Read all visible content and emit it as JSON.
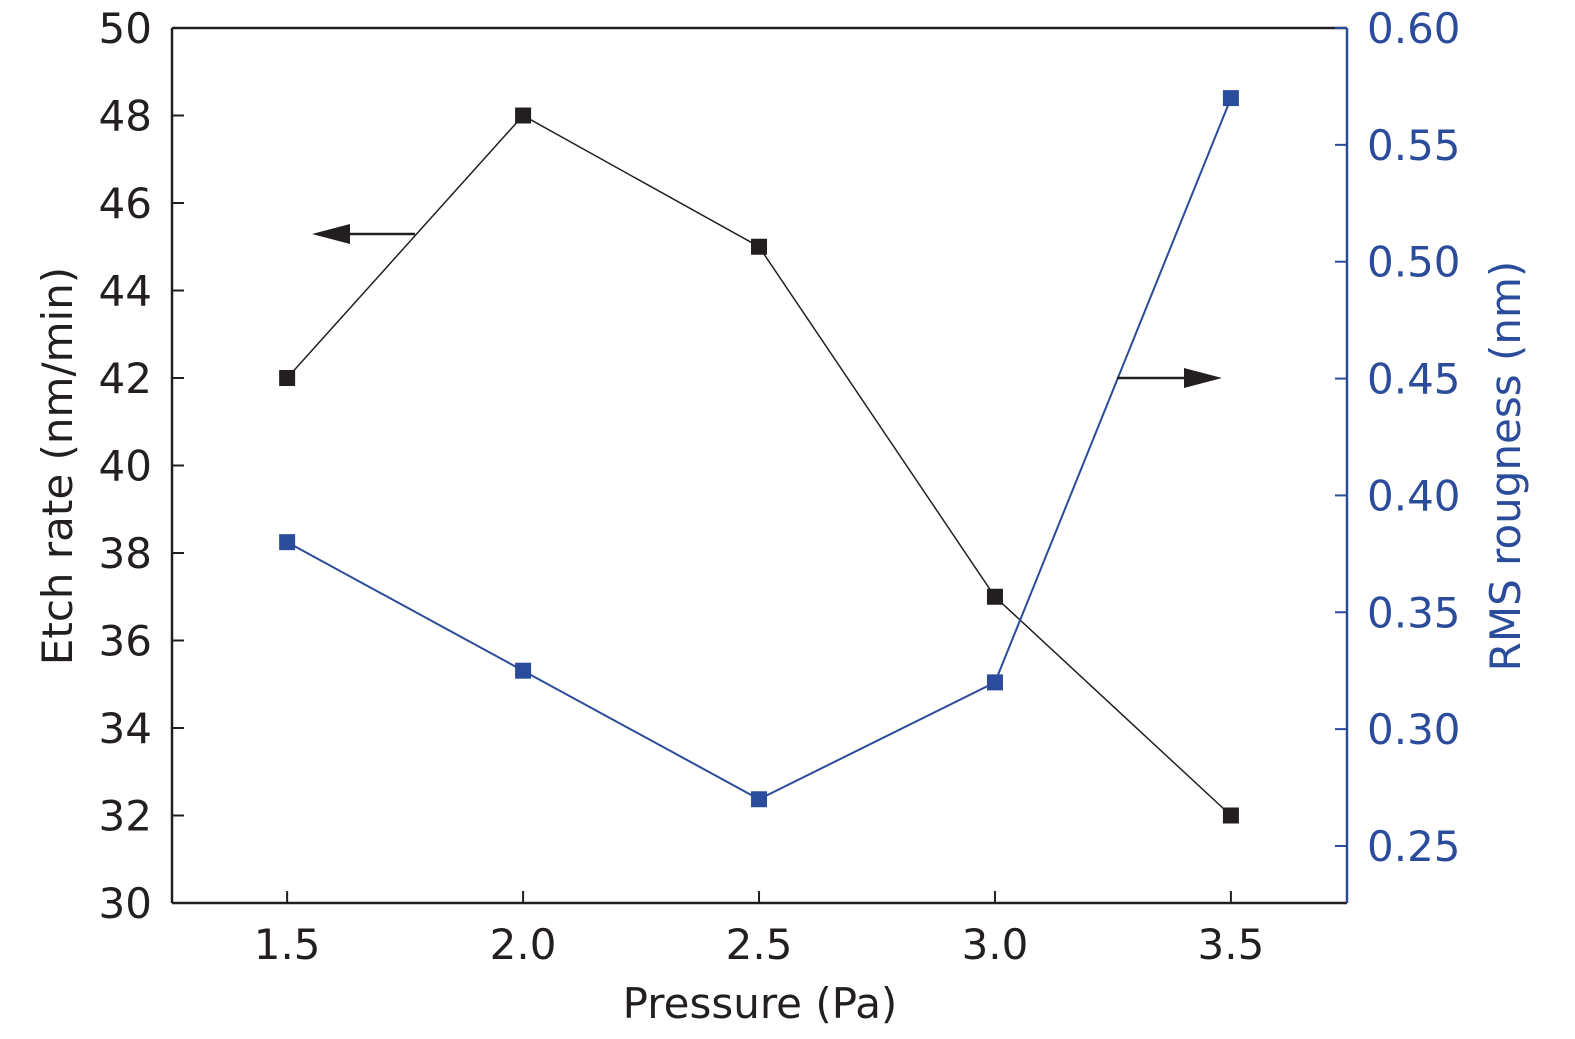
{
  "chart_data": {
    "type": "line",
    "title": "",
    "xlabel": "Pressure (Pa)",
    "ylabel": "Etch rate (nm/min)",
    "y2label": "RMS rougness (nm)",
    "x": [
      1.5,
      2.0,
      2.5,
      3.0,
      3.5
    ],
    "xlim": [
      1.256,
      3.746
    ],
    "ylim": [
      30,
      50
    ],
    "y2lim": [
      0.2256,
      0.6
    ],
    "xticks": [
      "1.5",
      "2.0",
      "2.5",
      "3.0",
      "3.5"
    ],
    "yticks": [
      "30",
      "32",
      "34",
      "36",
      "38",
      "40",
      "42",
      "44",
      "46",
      "48",
      "50"
    ],
    "y2ticks": [
      "0.25",
      "0.30",
      "0.35",
      "0.40",
      "0.45",
      "0.50",
      "0.55",
      "0.60"
    ],
    "grid": false,
    "series": [
      {
        "name": "Etch rate",
        "axis": "left",
        "color": "#231f20",
        "values": [
          42,
          48,
          45,
          37,
          32
        ]
      },
      {
        "name": "RMS roughness",
        "axis": "right",
        "color": "#2b4c9b",
        "values": [
          0.38,
          0.325,
          0.27,
          0.32,
          0.57
        ]
      }
    ],
    "annotations": [
      {
        "type": "arrow",
        "direction": "left",
        "points_to": "left axis",
        "series": "Etch rate"
      },
      {
        "type": "arrow",
        "direction": "right",
        "points_to": "right axis",
        "series": "RMS roughness"
      }
    ]
  }
}
